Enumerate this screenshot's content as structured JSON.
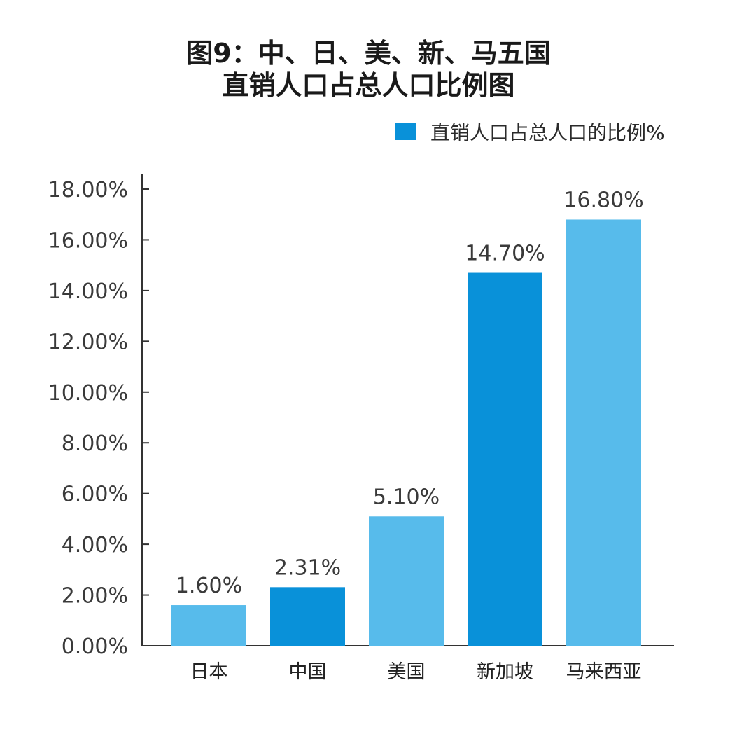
{
  "chart_data": {
    "type": "bar",
    "title_line1": "图9：中、日、美、新、马五国",
    "title_line2": "直销人口占总人口比例图",
    "categories": [
      "日本",
      "中国",
      "美国",
      "新加坡",
      "马来西亚"
    ],
    "series": [
      {
        "name": "直销人口占总人口的比例%",
        "values": [
          1.6,
          2.31,
          5.1,
          14.7,
          16.8
        ]
      }
    ],
    "data_labels": [
      "1.60%",
      "2.31%",
      "5.10%",
      "14.70%",
      "16.80%"
    ],
    "y_ticks": [
      "0.00%",
      "2.00%",
      "4.00%",
      "6.00%",
      "8.00%",
      "10.00%",
      "12.00%",
      "14.00%",
      "16.00%",
      "18.00%"
    ],
    "ylim": [
      0,
      18
    ],
    "grid": false,
    "legend_position": "top-right",
    "colors": {
      "light": "#57bbeb",
      "dark": "#0991d9",
      "legend": "#0991d9",
      "axis": "#333333"
    },
    "bar_color_keys": [
      "light",
      "dark",
      "light",
      "dark",
      "light"
    ]
  }
}
